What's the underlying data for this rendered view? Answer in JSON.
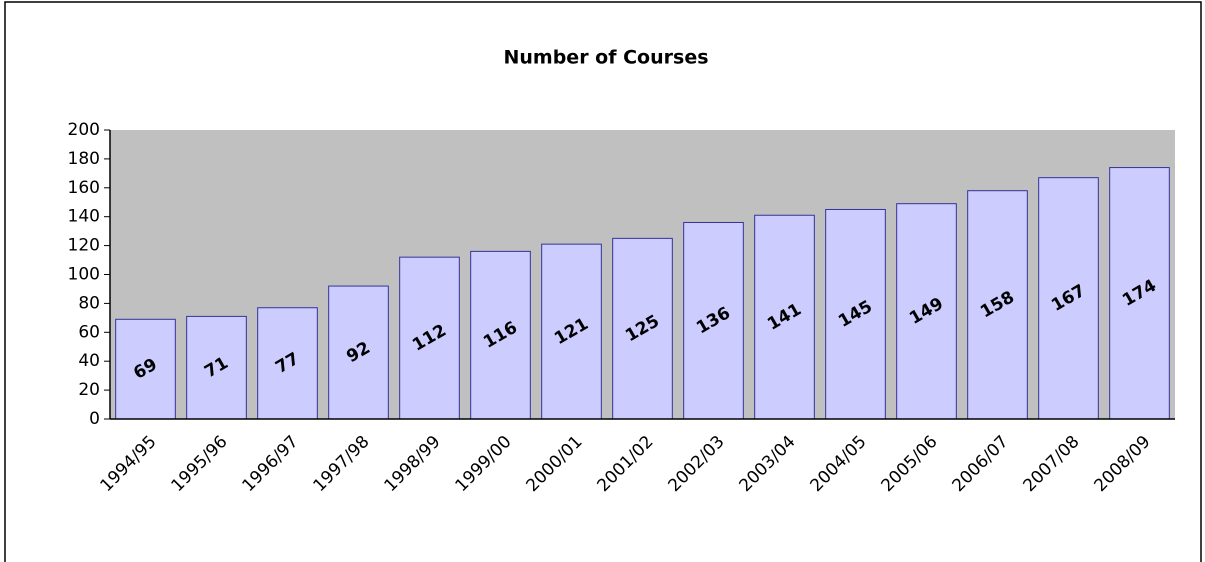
{
  "chart_data": {
    "type": "bar",
    "title": "Number of Courses",
    "categories": [
      "1994/95",
      "1995/96",
      "1996/97",
      "1997/98",
      "1998/99",
      "1999/00",
      "2000/01",
      "2001/02",
      "2002/03",
      "2003/04",
      "2004/05",
      "2005/06",
      "2006/07",
      "2007/08",
      "2008/09"
    ],
    "values": [
      69,
      71,
      77,
      92,
      112,
      116,
      121,
      125,
      136,
      141,
      145,
      149,
      158,
      167,
      174
    ],
    "color": "#ccccff",
    "edge_color": "#333399",
    "plot_background": "#c0c0c0",
    "ylim": [
      0,
      200
    ],
    "yticks": [
      0,
      20,
      40,
      60,
      80,
      100,
      120,
      140,
      160,
      180,
      200
    ],
    "grid": false
  }
}
